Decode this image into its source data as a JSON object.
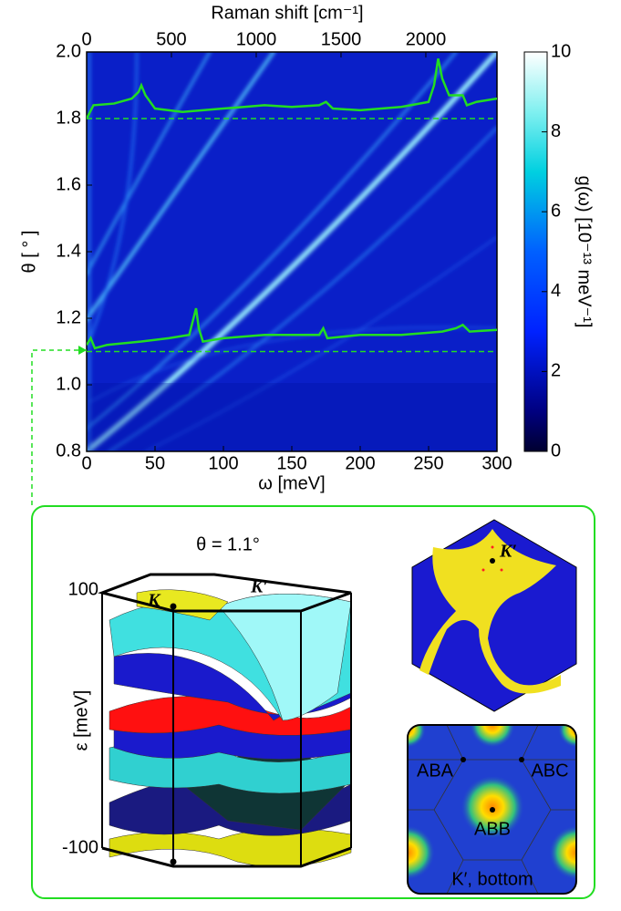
{
  "chart_data": {
    "type": "heatmap",
    "xlabel": "ω [meV]",
    "x2label": "Raman shift [cm⁻¹]",
    "ylabel": "θ [ ° ]",
    "xlim": [
      0,
      300
    ],
    "xticks": [
      0,
      50,
      100,
      150,
      200,
      250,
      300
    ],
    "x2lim": [
      0,
      2419.6
    ],
    "x2ticks": [
      0,
      500,
      1000,
      1500,
      2000
    ],
    "ylim": [
      0.8,
      2.0
    ],
    "yticks": [
      0.8,
      {
        "value": 1.0,
        "label": "1.0"
      },
      1.2,
      1.4,
      1.6,
      1.8,
      {
        "value": 2.0,
        "label": "2.0"
      }
    ],
    "colorbar": {
      "label": "g(ω) [10⁻¹³ meV⁻¹]",
      "lim": [
        0,
        10
      ],
      "ticks": [
        0,
        2,
        4,
        6,
        8,
        10
      ]
    },
    "reference_lines": [
      1.8,
      1.1
    ],
    "line_color": "#22dd22",
    "series": [
      {
        "x": [
          0,
          5,
          20,
          33,
          38,
          40,
          43,
          50,
          70,
          100,
          130,
          150,
          170,
          175,
          180,
          200,
          230,
          250,
          254,
          257,
          260,
          265,
          275,
          278,
          285,
          300
        ],
        "values": [
          1.8,
          1.84,
          1.845,
          1.86,
          1.88,
          1.9,
          1.87,
          1.83,
          1.82,
          1.83,
          1.84,
          1.835,
          1.84,
          1.85,
          1.83,
          1.825,
          1.835,
          1.85,
          1.9,
          1.98,
          1.92,
          1.87,
          1.87,
          1.84,
          1.85,
          1.86
        ]
      },
      {
        "x": [
          0,
          3,
          6,
          15,
          40,
          60,
          75,
          80,
          82,
          85,
          100,
          130,
          150,
          170,
          173,
          176,
          200,
          230,
          260,
          270,
          275,
          280,
          300
        ],
        "values": [
          1.12,
          1.14,
          1.11,
          1.12,
          1.13,
          1.14,
          1.15,
          1.23,
          1.17,
          1.13,
          1.14,
          1.15,
          1.15,
          1.15,
          1.17,
          1.14,
          1.15,
          1.15,
          1.16,
          1.17,
          1.18,
          1.16,
          1.165
        ]
      }
    ],
    "inset": {
      "title": "θ = 1.1°",
      "ylabel": "ε [meV]",
      "yticks": [
        100,
        -100
      ],
      "labels": [
        "K",
        "K′"
      ]
    },
    "maps": [
      {
        "labels": [
          "K′"
        ]
      },
      {
        "labels": [
          "ABA",
          "ABC",
          "ABB"
        ],
        "title": "K′, bottom"
      }
    ]
  }
}
